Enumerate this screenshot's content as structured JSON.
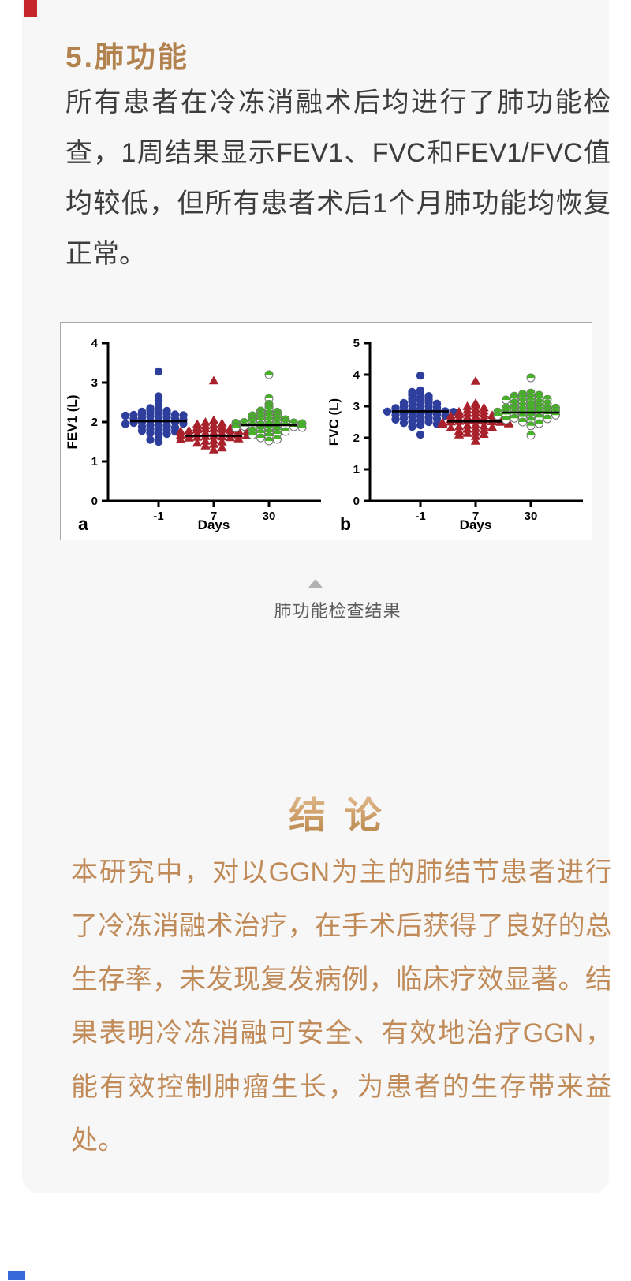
{
  "page": {
    "heading": "5.肺功能",
    "body_text": "所有患者在冷冻消融术后均进行了肺功能检查，1周结果显示FEV1、FVC和FEV1/FVC值均较低，但所有患者术后1个月肺功能均恢复正常。",
    "figure_caption": "肺功能检查结果",
    "conclusion_title": "结 论",
    "conclusion_text": "本研究中，对以GGN为主的肺结节患者进行了冷冻消融术治疗，在手术后获得了良好的总生存率，未发现复发病例，临床疗效显著。结果表明冷冻消融可安全、有效地治疗GGN，能有效控制肿瘤生长，为患者的生存带来益处。"
  },
  "colors": {
    "heading_accent": "#b2824f",
    "body_text": "#3d3d3d",
    "caption_text": "#5e5e5e",
    "conclusion_text": "#c08b58",
    "card_background": "#f7f7f7",
    "series_blue": "#2e3e9c",
    "series_red": "#a8212b",
    "series_green": "#45b227",
    "mean_line": "#000000"
  },
  "icons": {
    "separator": "triangle-up-icon"
  },
  "chart_data": [
    {
      "type": "scatter",
      "panel": "a",
      "ylabel": "FEV1  (L)",
      "xlabel": "Days",
      "ylim": [
        0,
        4
      ],
      "yticks": [
        0,
        1,
        2,
        3,
        4
      ],
      "categories": [
        "-1",
        "7",
        "30"
      ],
      "grid": false,
      "legend": false,
      "series": [
        {
          "name": "Day -1",
          "marker": "circle",
          "color": "#2e3e9c",
          "mean": 2.02,
          "values": [
            3.28,
            2.65,
            2.55,
            2.42,
            2.35,
            2.33,
            2.3,
            2.28,
            2.26,
            2.24,
            2.22,
            2.21,
            2.2,
            2.19,
            2.18,
            2.17,
            2.16,
            2.15,
            2.14,
            2.12,
            2.1,
            2.09,
            2.08,
            2.06,
            2.05,
            2.03,
            2.02,
            2.0,
            1.99,
            1.98,
            1.96,
            1.95,
            1.93,
            1.92,
            1.9,
            1.88,
            1.86,
            1.84,
            1.82,
            1.8,
            1.78,
            1.76,
            1.74,
            1.72,
            1.7,
            1.62,
            1.55,
            1.5
          ]
        },
        {
          "name": "Day 7",
          "marker": "triangle",
          "color": "#a8212b",
          "mean": 1.65,
          "values": [
            3.05,
            2.05,
            2.0,
            1.97,
            1.95,
            1.93,
            1.91,
            1.89,
            1.87,
            1.85,
            1.84,
            1.83,
            1.82,
            1.81,
            1.8,
            1.79,
            1.78,
            1.77,
            1.76,
            1.75,
            1.74,
            1.73,
            1.72,
            1.71,
            1.7,
            1.69,
            1.68,
            1.67,
            1.66,
            1.65,
            1.64,
            1.63,
            1.62,
            1.61,
            1.6,
            1.58,
            1.56,
            1.54,
            1.52,
            1.5,
            1.47,
            1.44,
            1.4,
            1.35,
            1.3
          ]
        },
        {
          "name": "Day 30",
          "marker": "half-circle",
          "color": "#45b227",
          "mean": 1.92,
          "values": [
            3.2,
            2.6,
            2.45,
            2.38,
            2.32,
            2.28,
            2.25,
            2.22,
            2.2,
            2.18,
            2.16,
            2.14,
            2.12,
            2.1,
            2.08,
            2.06,
            2.05,
            2.04,
            2.02,
            2.01,
            2.0,
            1.99,
            1.98,
            1.97,
            1.96,
            1.95,
            1.94,
            1.93,
            1.92,
            1.91,
            1.9,
            1.89,
            1.88,
            1.87,
            1.86,
            1.85,
            1.84,
            1.82,
            1.8,
            1.78,
            1.76,
            1.74,
            1.72,
            1.7,
            1.67,
            1.64,
            1.6,
            1.56,
            1.52
          ]
        }
      ]
    },
    {
      "type": "scatter",
      "panel": "b",
      "ylabel": "FVC (L)",
      "xlabel": "Days",
      "ylim": [
        0,
        5
      ],
      "yticks": [
        0,
        1,
        2,
        3,
        4,
        5
      ],
      "categories": [
        "-1",
        "7",
        "30"
      ],
      "grid": false,
      "legend": false,
      "series": [
        {
          "name": "Day -1",
          "marker": "circle",
          "color": "#2e3e9c",
          "mean": 2.84,
          "values": [
            3.97,
            3.5,
            3.45,
            3.4,
            3.36,
            3.32,
            3.28,
            3.25,
            3.22,
            3.18,
            3.15,
            3.12,
            3.1,
            3.08,
            3.05,
            3.02,
            3.0,
            2.98,
            2.96,
            2.94,
            2.92,
            2.9,
            2.88,
            2.87,
            2.86,
            2.85,
            2.84,
            2.83,
            2.82,
            2.8,
            2.78,
            2.77,
            2.76,
            2.74,
            2.72,
            2.7,
            2.68,
            2.66,
            2.64,
            2.62,
            2.6,
            2.58,
            2.55,
            2.52,
            2.5,
            2.47,
            2.44,
            2.4,
            2.35,
            2.1
          ]
        },
        {
          "name": "Day 7",
          "marker": "triangle",
          "color": "#a8212b",
          "mean": 2.52,
          "values": [
            3.8,
            3.1,
            3.05,
            3.0,
            2.96,
            2.92,
            2.89,
            2.86,
            2.83,
            2.8,
            2.78,
            2.76,
            2.74,
            2.72,
            2.7,
            2.68,
            2.66,
            2.64,
            2.62,
            2.6,
            2.59,
            2.58,
            2.56,
            2.55,
            2.54,
            2.53,
            2.52,
            2.51,
            2.5,
            2.49,
            2.48,
            2.46,
            2.45,
            2.44,
            2.42,
            2.4,
            2.38,
            2.36,
            2.34,
            2.32,
            2.3,
            2.28,
            2.25,
            2.22,
            2.18,
            2.15,
            2.12,
            2.1,
            2.05,
            1.9
          ]
        },
        {
          "name": "Day 30",
          "marker": "half-circle",
          "color": "#45b227",
          "mean": 2.8,
          "values": [
            3.9,
            3.42,
            3.38,
            3.35,
            3.32,
            3.3,
            3.28,
            3.26,
            3.24,
            3.22,
            3.2,
            3.18,
            3.15,
            3.12,
            3.1,
            3.08,
            3.05,
            3.02,
            3.0,
            2.98,
            2.96,
            2.95,
            2.94,
            2.92,
            2.9,
            2.89,
            2.88,
            2.86,
            2.85,
            2.84,
            2.82,
            2.8,
            2.79,
            2.78,
            2.76,
            2.75,
            2.74,
            2.72,
            2.7,
            2.68,
            2.66,
            2.64,
            2.62,
            2.6,
            2.57,
            2.54,
            2.5,
            2.45,
            2.38,
            2.08
          ]
        }
      ]
    }
  ]
}
